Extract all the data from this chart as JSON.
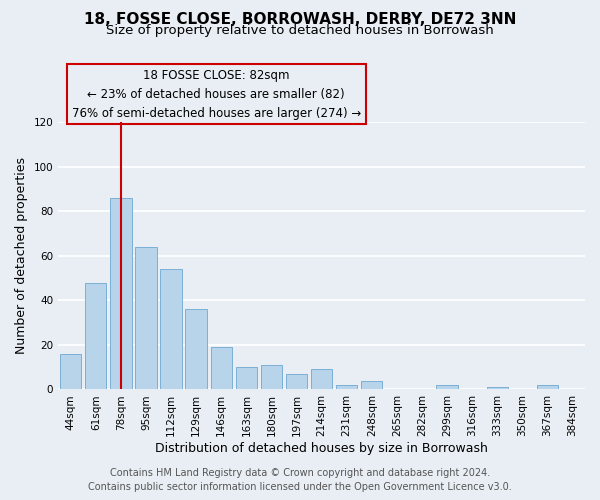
{
  "title": "18, FOSSE CLOSE, BORROWASH, DERBY, DE72 3NN",
  "subtitle": "Size of property relative to detached houses in Borrowash",
  "xlabel": "Distribution of detached houses by size in Borrowash",
  "ylabel": "Number of detached properties",
  "categories": [
    "44sqm",
    "61sqm",
    "78sqm",
    "95sqm",
    "112sqm",
    "129sqm",
    "146sqm",
    "163sqm",
    "180sqm",
    "197sqm",
    "214sqm",
    "231sqm",
    "248sqm",
    "265sqm",
    "282sqm",
    "299sqm",
    "316sqm",
    "333sqm",
    "350sqm",
    "367sqm",
    "384sqm"
  ],
  "values": [
    16,
    48,
    86,
    64,
    54,
    36,
    19,
    10,
    11,
    7,
    9,
    2,
    4,
    0,
    0,
    2,
    0,
    1,
    0,
    2,
    0
  ],
  "bar_color": "#b8d4ea",
  "bar_edge_color": "#7aafd4",
  "vline_x_index": 2,
  "vline_color": "#cc0000",
  "ylim": [
    0,
    120
  ],
  "yticks": [
    0,
    20,
    40,
    60,
    80,
    100,
    120
  ],
  "annotation_title": "18 FOSSE CLOSE: 82sqm",
  "annotation_line1": "← 23% of detached houses are smaller (82)",
  "annotation_line2": "76% of semi-detached houses are larger (274) →",
  "footer1": "Contains HM Land Registry data © Crown copyright and database right 2024.",
  "footer2": "Contains public sector information licensed under the Open Government Licence v3.0.",
  "background_color": "#e8eef4",
  "plot_bg_color": "#e8eef4",
  "grid_color": "#ffffff",
  "title_fontsize": 11,
  "subtitle_fontsize": 9.5,
  "axis_label_fontsize": 9,
  "tick_fontsize": 7.5,
  "footer_fontsize": 7,
  "ann_fontsize": 8.5
}
